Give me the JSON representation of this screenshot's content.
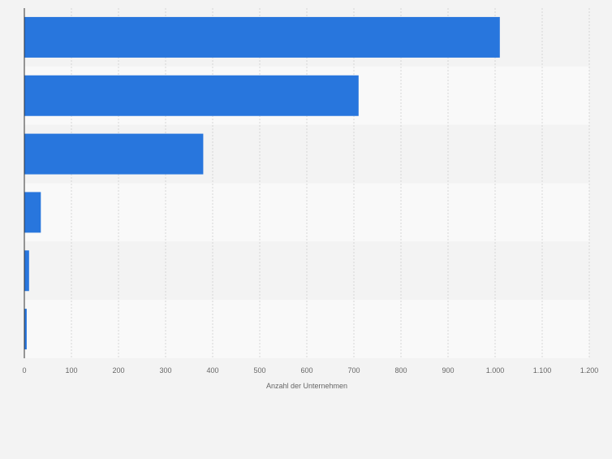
{
  "chart_data": {
    "type": "bar",
    "orientation": "horizontal",
    "categories": [
      "",
      "",
      "",
      "",
      "",
      ""
    ],
    "values": [
      1010,
      710,
      380,
      35,
      10,
      5
    ],
    "xlabel": "Anzahl der Unternehmen",
    "ylabel": "",
    "xlim": [
      0,
      1200
    ],
    "ticks": [
      0,
      100,
      200,
      300,
      400,
      500,
      600,
      700,
      800,
      900,
      1000,
      1100,
      1200
    ],
    "tick_labels": [
      "0",
      "100",
      "200",
      "300",
      "400",
      "500",
      "600",
      "700",
      "800",
      "900",
      "1.000",
      "1.100",
      "1.200"
    ],
    "grid": true,
    "legend": "none",
    "colors": {
      "bar": "#2876dd",
      "band_dark": "#f3f3f3",
      "band_light": "#f9f9f9",
      "grid": "#d6d6d6",
      "axis": "#333333",
      "tick_text": "#666666"
    }
  }
}
